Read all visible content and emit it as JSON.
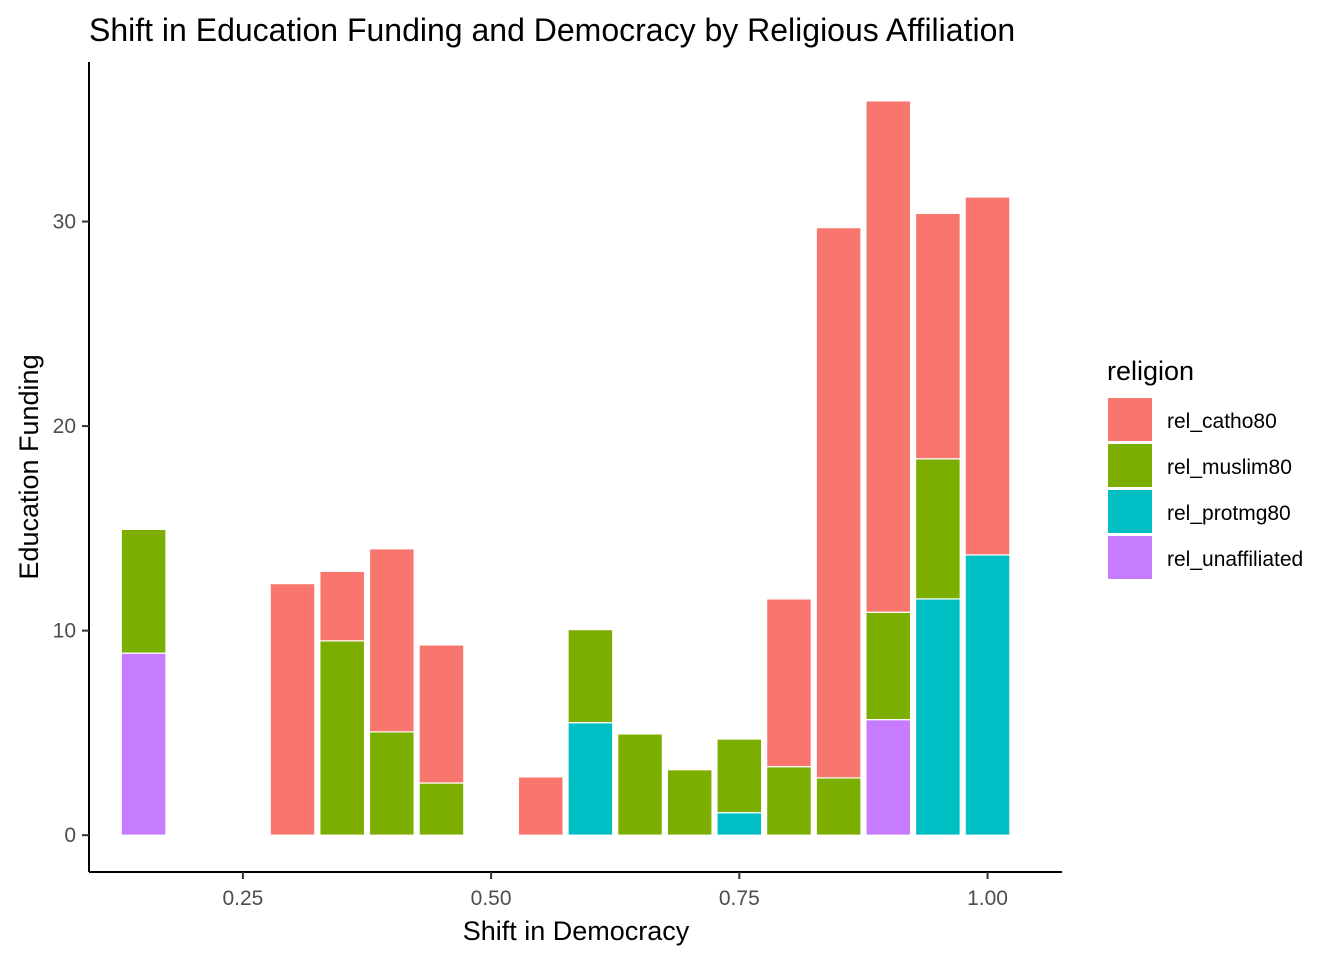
{
  "chart_data": {
    "type": "bar",
    "stacked": true,
    "title": "Shift in Education Funding and Democracy by Religious Affiliation",
    "xlabel": "Shift in Democracy",
    "ylabel": "Education Funding",
    "xlim": [
      0.095,
      1.075
    ],
    "ylim": [
      -1.8,
      37.8
    ],
    "x_ticks": [
      {
        "value": 0.25,
        "label": "0.25"
      },
      {
        "value": 0.5,
        "label": "0.50"
      },
      {
        "value": 0.75,
        "label": "0.75"
      },
      {
        "value": 1.0,
        "label": "1.00"
      }
    ],
    "y_ticks": [
      {
        "value": 0,
        "label": "0"
      },
      {
        "value": 10,
        "label": "10"
      },
      {
        "value": 20,
        "label": "20"
      },
      {
        "value": 30,
        "label": "30"
      }
    ],
    "bar_width": 0.045,
    "grid": false,
    "legend": {
      "title": "religion",
      "position": "right",
      "entries": [
        {
          "name": "rel_catho80",
          "color": "#F8766D"
        },
        {
          "name": "rel_muslim80",
          "color": "#7CAE00"
        },
        {
          "name": "rel_protmg80",
          "color": "#00BFC4"
        },
        {
          "name": "rel_unaffiliated",
          "color": "#C77CFF"
        }
      ]
    },
    "stack_order_bottom_to_top": [
      "rel_unaffiliated",
      "rel_protmg80",
      "rel_muslim80",
      "rel_catho80"
    ],
    "bars": [
      {
        "x": 0.15,
        "rel_catho80": 0,
        "rel_muslim80": 6.05,
        "rel_protmg80": 0,
        "rel_unaffiliated": 8.9
      },
      {
        "x": 0.3,
        "rel_catho80": 12.3,
        "rel_muslim80": 0,
        "rel_protmg80": 0,
        "rel_unaffiliated": 0
      },
      {
        "x": 0.35,
        "rel_catho80": 3.4,
        "rel_muslim80": 9.5,
        "rel_protmg80": 0,
        "rel_unaffiliated": 0
      },
      {
        "x": 0.4,
        "rel_catho80": 8.95,
        "rel_muslim80": 5.05,
        "rel_protmg80": 0,
        "rel_unaffiliated": 0
      },
      {
        "x": 0.45,
        "rel_catho80": 6.75,
        "rel_muslim80": 2.55,
        "rel_protmg80": 0,
        "rel_unaffiliated": 0
      },
      {
        "x": 0.55,
        "rel_catho80": 2.85,
        "rel_muslim80": 0,
        "rel_protmg80": 0,
        "rel_unaffiliated": 0
      },
      {
        "x": 0.6,
        "rel_catho80": 0,
        "rel_muslim80": 4.55,
        "rel_protmg80": 5.5,
        "rel_unaffiliated": 0
      },
      {
        "x": 0.65,
        "rel_catho80": 0,
        "rel_muslim80": 4.95,
        "rel_protmg80": 0,
        "rel_unaffiliated": 0
      },
      {
        "x": 0.7,
        "rel_catho80": 0,
        "rel_muslim80": 3.2,
        "rel_protmg80": 0,
        "rel_unaffiliated": 0
      },
      {
        "x": 0.75,
        "rel_catho80": 0,
        "rel_muslim80": 3.6,
        "rel_protmg80": 1.1,
        "rel_unaffiliated": 0
      },
      {
        "x": 0.8,
        "rel_catho80": 8.2,
        "rel_muslim80": 3.35,
        "rel_protmg80": 0,
        "rel_unaffiliated": 0
      },
      {
        "x": 0.85,
        "rel_catho80": 26.9,
        "rel_muslim80": 2.8,
        "rel_protmg80": 0,
        "rel_unaffiliated": 0
      },
      {
        "x": 0.9,
        "rel_catho80": 25.0,
        "rel_muslim80": 5.25,
        "rel_protmg80": 0,
        "rel_unaffiliated": 5.65
      },
      {
        "x": 0.95,
        "rel_catho80": 12.0,
        "rel_muslim80": 6.85,
        "rel_protmg80": 11.55,
        "rel_unaffiliated": 0
      },
      {
        "x": 1.0,
        "rel_catho80": 17.5,
        "rel_muslim80": 0,
        "rel_protmg80": 13.7,
        "rel_unaffiliated": 0
      }
    ]
  }
}
